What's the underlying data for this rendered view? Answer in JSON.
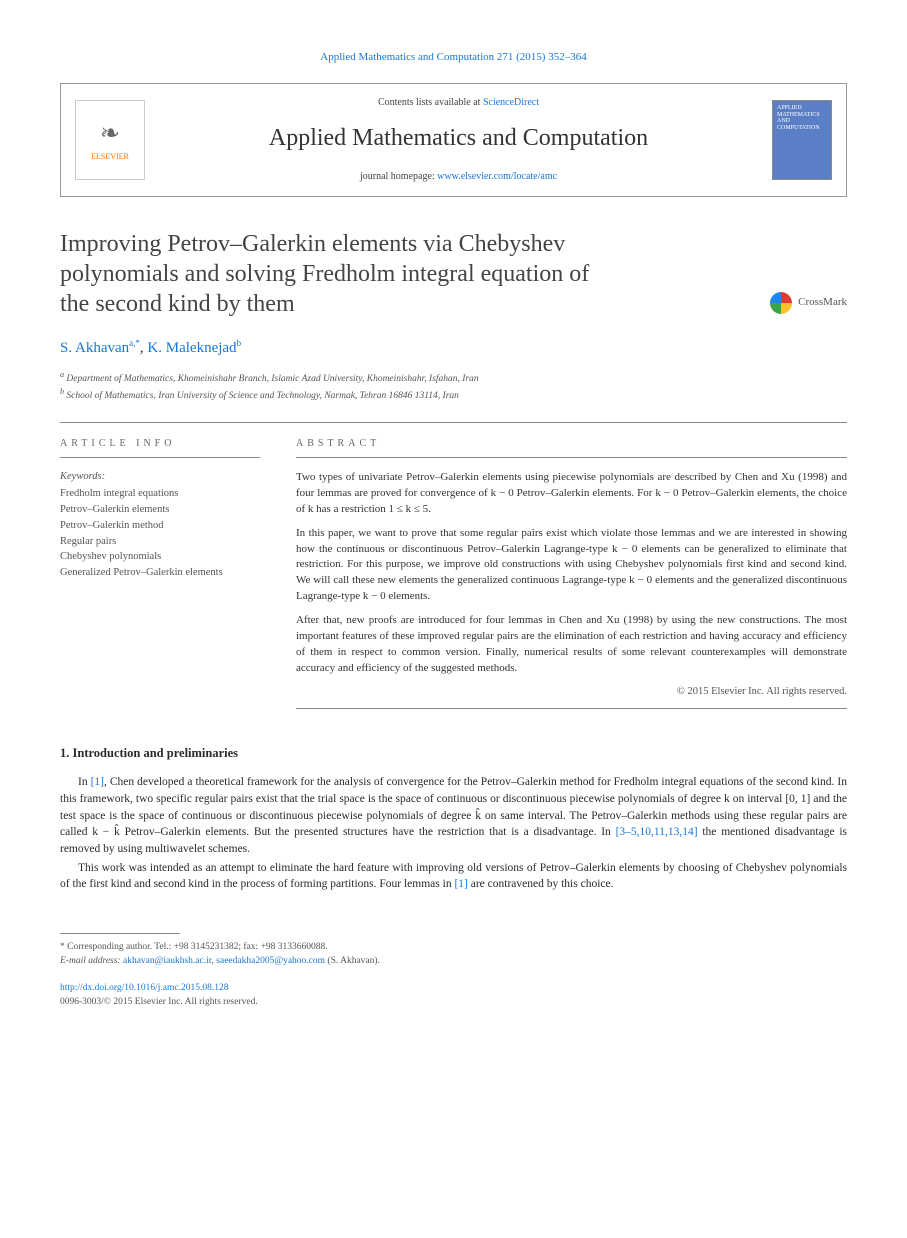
{
  "citation": "Applied Mathematics and Computation 271 (2015) 352–364",
  "journal_box": {
    "elsevier": "ELSEVIER",
    "contents_prefix": "Contents lists available at ",
    "contents_link": "ScienceDirect",
    "journal_title": "Applied Mathematics and Computation",
    "homepage_prefix": "journal homepage: ",
    "homepage_link": "www.elsevier.com/locate/amc",
    "thumb_text": "APPLIED MATHEMATICS AND COMPUTATION"
  },
  "crossmark_label": "CrossMark",
  "title": "Improving Petrov–Galerkin elements via Chebyshev polynomials and solving Fredholm integral equation of the second kind by them",
  "authors": {
    "a1_name": "S. Akhavan",
    "a1_sup": "a,*",
    "sep": ", ",
    "a2_name": "K. Maleknejad",
    "a2_sup": "b"
  },
  "affiliations": {
    "a": "Department of Mathematics, Khomeinishahr Branch, Islamic Azad University, Khomeinishahr, Isfahan, Iran",
    "b": "School of Mathematics, Iran University of Science and Technology, Narmak, Tehran 16846 13114, Iran"
  },
  "info_head": "ARTICLE INFO",
  "abstract_head": "ABSTRACT",
  "keywords_label": "Keywords:",
  "keywords": [
    "Fredholm integral equations",
    "Petrov–Galerkin elements",
    "Petrov–Galerkin method",
    "Regular pairs",
    "Chebyshev polynomials",
    "Generalized Petrov–Galerkin elements"
  ],
  "abstract": {
    "p1": "Two types of univariate Petrov–Galerkin elements using piecewise polynomials are described by Chen and Xu (1998) and four lemmas are proved for convergence of k − 0 Petrov–Galerkin elements. For k − 0 Petrov–Galerkin elements, the choice of k has a restriction 1 ≤ k ≤ 5.",
    "p2": "In this paper, we want to prove that some regular pairs exist which violate those lemmas and we are interested in showing how the continuous or discontinuous Petrov–Galerkin Lagrange-type k − 0 elements can be generalized to eliminate that restriction. For this purpose, we improve old constructions with using Chebyshev polynomials first kind and second kind. We will call these new elements the generalized continuous Lagrange-type k − 0 elements and the generalized discontinuous Lagrange-type k − 0 elements.",
    "p3": "After that, new proofs are introduced for four lemmas in Chen and Xu (1998) by using the new constructions. The most important features of these improved regular pairs are the elimination of each restriction and having accuracy and efficiency of them in respect to common version. Finally, numerical results of some relevant counterexamples will demonstrate accuracy and efficiency of the suggested methods.",
    "copyright": "© 2015 Elsevier Inc. All rights reserved."
  },
  "section1_heading": "1. Introduction and preliminaries",
  "intro": {
    "p1a": "In ",
    "p1_ref1": "[1]",
    "p1b": ", Chen developed a theoretical framework for the analysis of convergence for the Petrov–Galerkin method for Fredholm integral equations of the second kind. In this framework, two specific regular pairs exist that the trial space is the space of continuous or discontinuous piecewise polynomials of degree k on interval [0, 1] and the test space is the space of continuous or discontinuous piecewise polynomials of degree k̂ on same interval. The Petrov–Galerkin methods using these regular pairs are called k − k̂ Petrov–Galerkin elements. But the presented structures have the restriction that is a disadvantage. In ",
    "p1_ref2": "[3–5,10,11,13,14]",
    "p1c": " the mentioned disadvantage is removed by using multiwavelet schemes.",
    "p2a": "This work was intended as an attempt to eliminate the hard feature with improving old versions of Petrov–Galerkin elements by choosing of Chebyshev polynomials of the first kind and second kind in the process of forming partitions. Four lemmas in ",
    "p2_ref": "[1]",
    "p2b": " are contravened by this choice."
  },
  "footnotes": {
    "corr": "* Corresponding author. Tel.: +98 3145231382; fax: +98 3133660088.",
    "email_label": "E-mail address: ",
    "email1": "akhavan@iaukhsh.ac.ir",
    "sep": ", ",
    "email2": "saeedakha2005@yahoo.com",
    "person": " (S. Akhavan)."
  },
  "footer": {
    "doi": "http://dx.doi.org/10.1016/j.amc.2015.08.128",
    "issn_line": "0096-3003/© 2015 Elsevier Inc. All rights reserved."
  },
  "colors": {
    "link": "#1976d2",
    "text": "#2a2a2a",
    "muted": "#555555",
    "rule": "#888888",
    "thumb_bg": "#5b7fc7"
  }
}
